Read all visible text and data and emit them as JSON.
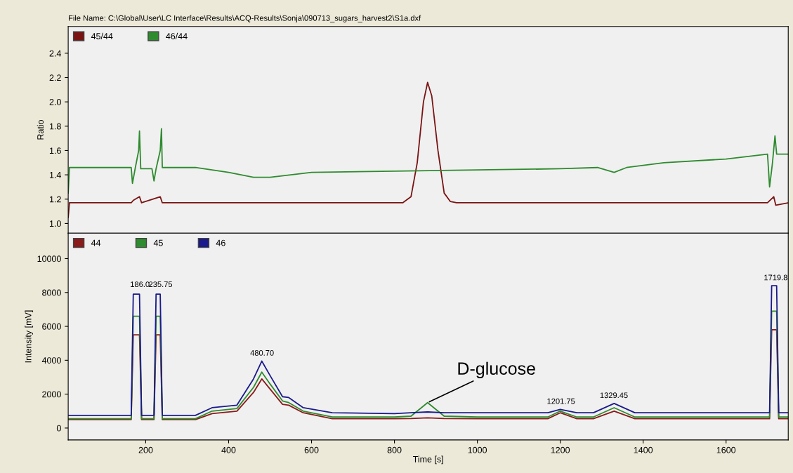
{
  "chart_data": [
    {
      "type": "line",
      "ylabel": "Ratio",
      "annotations": [
        "File Name: C:\\Global\\User\\LC Interface\\Results\\ACQ-Results\\Sonja\\090713_sugars_harvest2\\S1a.dxf"
      ],
      "xlim": [
        13,
        1750
      ],
      "ylim": [
        0.92,
        2.62
      ],
      "yticks": [
        {
          "value": 1.0,
          "label": "1.0"
        },
        {
          "value": 1.2,
          "label": "1.2"
        },
        {
          "value": 1.4,
          "label": "1.4"
        },
        {
          "value": 1.6,
          "label": "1.6"
        },
        {
          "value": 1.8,
          "label": "1.8"
        },
        {
          "value": 2.0,
          "label": "2.0"
        },
        {
          "value": 2.2,
          "label": "2.2"
        },
        {
          "value": 2.4,
          "label": "2.4"
        }
      ],
      "tick_labels": "y",
      "legend": "top left",
      "grid": false,
      "series": [
        {
          "name": "45/44",
          "color": "#7a1414",
          "x": [
            13,
            16,
            165,
            170,
            185,
            190,
            235,
            240,
            820,
            840,
            855,
            870,
            880,
            890,
            905,
            920,
            935,
            950,
            1700,
            1715,
            1720,
            1750
          ],
          "values": [
            1.05,
            1.17,
            1.17,
            1.19,
            1.22,
            1.17,
            1.22,
            1.17,
            1.17,
            1.22,
            1.5,
            2.0,
            2.16,
            2.05,
            1.6,
            1.25,
            1.18,
            1.17,
            1.17,
            1.22,
            1.15,
            1.17
          ]
        },
        {
          "name": "46/44",
          "color": "#2e8b2e",
          "x": [
            13,
            16,
            165,
            168,
            175,
            183,
            185,
            188,
            215,
            220,
            225,
            235,
            238,
            240,
            320,
            400,
            460,
            500,
            600,
            800,
            1000,
            1200,
            1290,
            1330,
            1360,
            1450,
            1600,
            1700,
            1705,
            1712,
            1718,
            1722,
            1750
          ],
          "values": [
            1.25,
            1.46,
            1.46,
            1.33,
            1.46,
            1.6,
            1.76,
            1.45,
            1.45,
            1.35,
            1.45,
            1.6,
            1.78,
            1.46,
            1.46,
            1.42,
            1.38,
            1.38,
            1.42,
            1.43,
            1.44,
            1.45,
            1.46,
            1.42,
            1.46,
            1.5,
            1.53,
            1.57,
            1.3,
            1.5,
            1.72,
            1.57,
            1.57
          ]
        }
      ]
    },
    {
      "type": "line",
      "xlabel": "Time [s]",
      "ylabel": "Intensity [mV]",
      "xlim": [
        13,
        1750
      ],
      "xticks": [
        200,
        400,
        600,
        800,
        1000,
        1200,
        1400,
        1600
      ],
      "ylim": [
        -700,
        11500
      ],
      "yticks": [
        0,
        2000,
        4000,
        6000,
        8000,
        10000
      ],
      "legend": "top left",
      "grid": false,
      "annotations": [
        {
          "text": "186.0",
          "x": 186,
          "y": 8000
        },
        {
          "text": "235.75",
          "x": 235.75,
          "y": 8000
        },
        {
          "text": "480.70",
          "x": 480.7,
          "y": 3950
        },
        {
          "text": "D-glucose",
          "x": 880,
          "y": 1500
        },
        {
          "text": "1201.75",
          "x": 1201.75,
          "y": 1100
        },
        {
          "text": "1329.45",
          "x": 1329.45,
          "y": 1450
        },
        {
          "text": "1719.8",
          "x": 1719.8,
          "y": 8400
        }
      ],
      "series": [
        {
          "name": "44",
          "color": "#8b1a1a",
          "x": [
            13,
            165,
            170,
            185,
            190,
            220,
            225,
            235,
            240,
            320,
            360,
            420,
            460,
            480,
            500,
            530,
            545,
            580,
            650,
            800,
            840,
            880,
            920,
            1000,
            1170,
            1200,
            1240,
            1280,
            1330,
            1380,
            1705,
            1710,
            1722,
            1727,
            1750
          ],
          "values": [
            500,
            500,
            5500,
            5500,
            500,
            500,
            5500,
            5500,
            500,
            500,
            850,
            1000,
            2100,
            2900,
            2300,
            1400,
            1350,
            900,
            550,
            550,
            560,
            600,
            560,
            550,
            550,
            900,
            550,
            550,
            1000,
            550,
            550,
            5800,
            5800,
            550,
            550
          ]
        },
        {
          "name": "45",
          "color": "#2e8b2e",
          "x": [
            13,
            165,
            170,
            185,
            190,
            220,
            225,
            235,
            240,
            320,
            360,
            420,
            460,
            480,
            500,
            530,
            545,
            580,
            650,
            800,
            840,
            880,
            920,
            1000,
            1170,
            1200,
            1240,
            1280,
            1330,
            1380,
            1705,
            1710,
            1722,
            1727,
            1750
          ],
          "values": [
            550,
            550,
            6600,
            6600,
            550,
            550,
            6600,
            6600,
            550,
            550,
            1000,
            1150,
            2400,
            3300,
            2600,
            1600,
            1500,
            1000,
            650,
            650,
            700,
            1500,
            700,
            650,
            650,
            1000,
            650,
            650,
            1200,
            650,
            650,
            6900,
            6900,
            650,
            650
          ]
        },
        {
          "name": "46",
          "color": "#1a1a8c",
          "x": [
            13,
            165,
            170,
            185,
            190,
            220,
            225,
            235,
            240,
            320,
            360,
            420,
            460,
            480,
            500,
            530,
            545,
            580,
            650,
            800,
            840,
            880,
            920,
            1000,
            1170,
            1200,
            1240,
            1280,
            1330,
            1380,
            1705,
            1710,
            1722,
            1727,
            1750
          ],
          "values": [
            750,
            750,
            7900,
            7900,
            750,
            750,
            7900,
            7900,
            750,
            750,
            1200,
            1350,
            2900,
            3950,
            3100,
            1850,
            1800,
            1200,
            900,
            850,
            900,
            950,
            900,
            900,
            900,
            1100,
            900,
            900,
            1450,
            900,
            900,
            8400,
            8400,
            900,
            900
          ]
        }
      ]
    }
  ]
}
